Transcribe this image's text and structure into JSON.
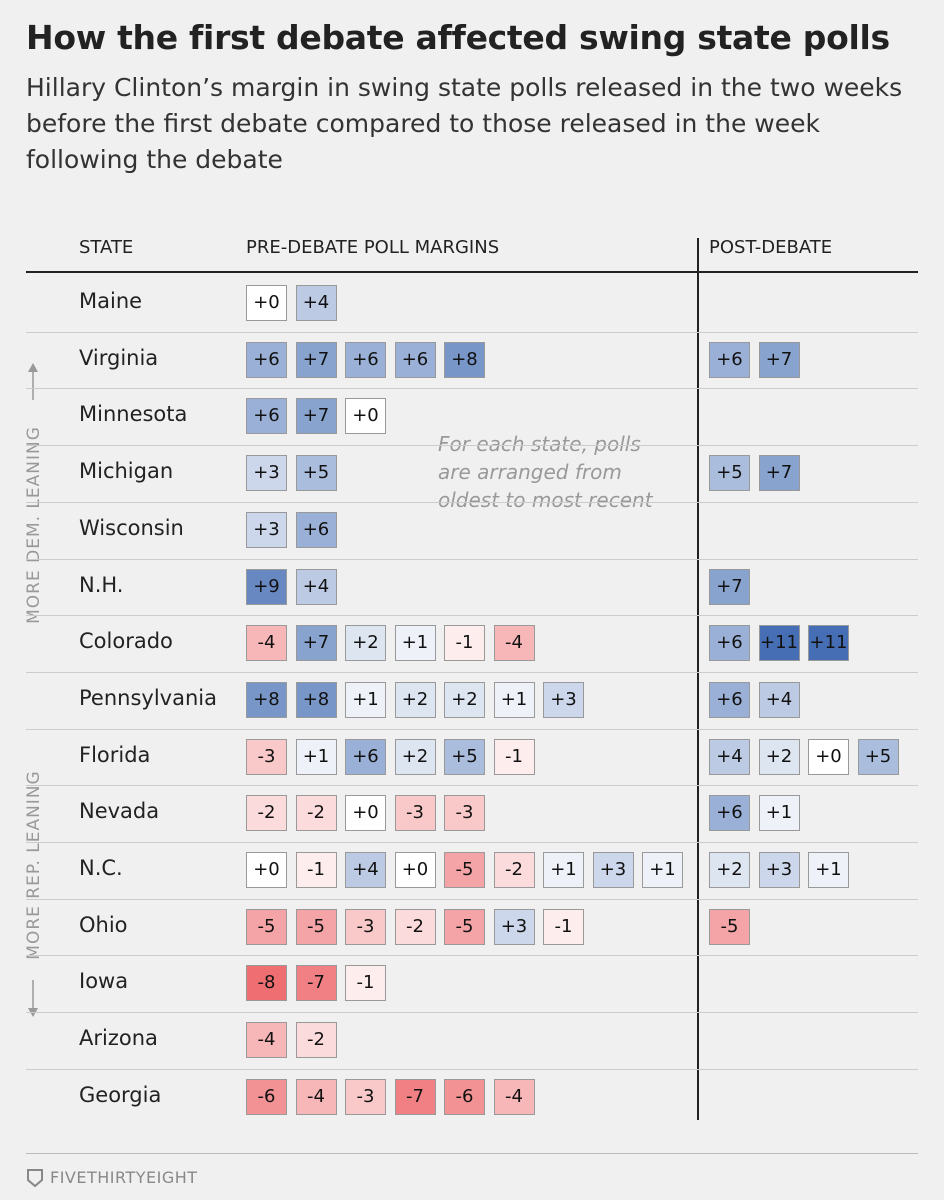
{
  "title": "How the first debate affected swing state polls",
  "subtitle": "Hillary Clinton’s margin in swing state polls released in the two weeks before the first debate compared to those released in the week following the debate",
  "table": {
    "columns": [
      "STATE",
      "PRE-DEBATE POLL MARGINS",
      "POST-DEBATE"
    ],
    "rows": [
      {
        "state": "Maine",
        "pre": [
          "+0",
          "+4"
        ],
        "post": []
      },
      {
        "state": "Virginia",
        "pre": [
          "+6",
          "+7",
          "+6",
          "+6",
          "+8"
        ],
        "post": [
          "+6",
          "+7"
        ]
      },
      {
        "state": "Minnesota",
        "pre": [
          "+6",
          "+7",
          "+0"
        ],
        "post": []
      },
      {
        "state": "Michigan",
        "pre": [
          "+3",
          "+5"
        ],
        "post": [
          "+5",
          "+7"
        ]
      },
      {
        "state": "Wisconsin",
        "pre": [
          "+3",
          "+6"
        ],
        "post": []
      },
      {
        "state": "N.H.",
        "pre": [
          "+9",
          "+4"
        ],
        "post": [
          "+7"
        ]
      },
      {
        "state": "Colorado",
        "pre": [
          "-4",
          "+7",
          "+2",
          "+1",
          "-1",
          "-4"
        ],
        "post": [
          "+6",
          "+11",
          "+11"
        ]
      },
      {
        "state": "Pennsylvania",
        "pre": [
          "+8",
          "+8",
          "+1",
          "+2",
          "+2",
          "+1",
          "+3"
        ],
        "post": [
          "+6",
          "+4"
        ]
      },
      {
        "state": "Florida",
        "pre": [
          "-3",
          "+1",
          "+6",
          "+2",
          "+5",
          "-1"
        ],
        "post": [
          "+4",
          "+2",
          "+0",
          "+5"
        ]
      },
      {
        "state": "Nevada",
        "pre": [
          "-2",
          "-2",
          "+0",
          "-3",
          "-3"
        ],
        "post": [
          "+6",
          "+1"
        ]
      },
      {
        "state": "N.C.",
        "pre": [
          "+0",
          "-1",
          "+4",
          "+0",
          "-5",
          "-2",
          "+1",
          "+3",
          "+1"
        ],
        "post": [
          "+2",
          "+3",
          "+1"
        ]
      },
      {
        "state": "Ohio",
        "pre": [
          "-5",
          "-5",
          "-3",
          "-2",
          "-5",
          "+3",
          "-1"
        ],
        "post": [
          "-5"
        ]
      },
      {
        "state": "Iowa",
        "pre": [
          "-8",
          "-7",
          "-1"
        ],
        "post": []
      },
      {
        "state": "Arizona",
        "pre": [
          "-4",
          "-2"
        ],
        "post": []
      },
      {
        "state": "Georgia",
        "pre": [
          "-6",
          "-4",
          "-3",
          "-7",
          "-6",
          "-4"
        ],
        "post": []
      }
    ]
  },
  "side_labels": {
    "dem": "MORE DEM. LEANING",
    "rep": "MORE REP. LEANING"
  },
  "annotation": "For each state, polls are arranged from oldest to most recent",
  "footer": "FIVETHIRTYEIGHT"
}
